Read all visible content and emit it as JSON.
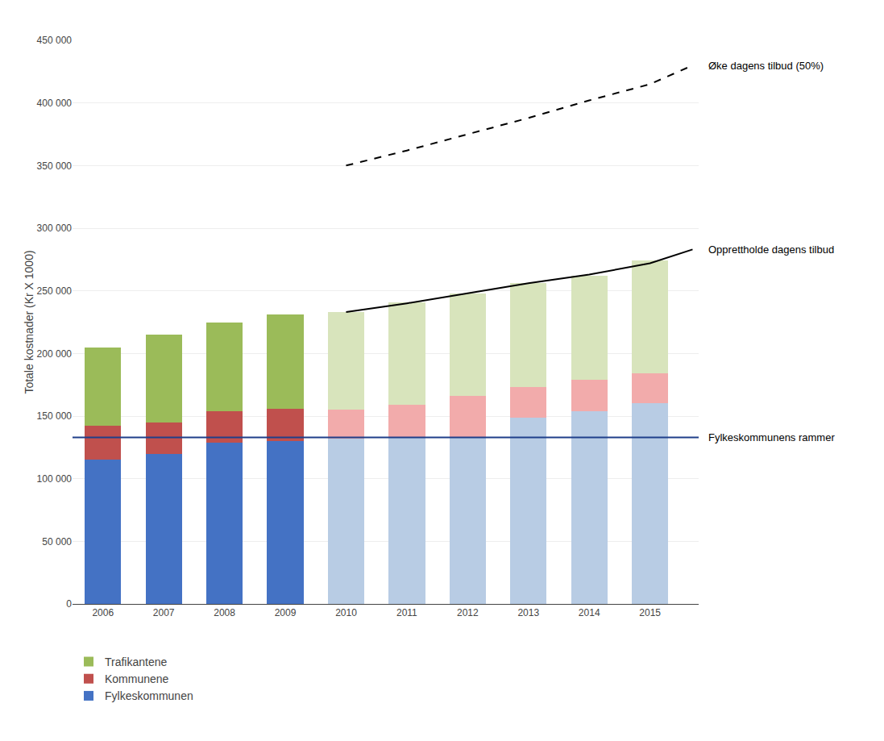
{
  "chart_data": {
    "type": "bar",
    "stacked": true,
    "grid": true,
    "legend": "bottom",
    "categories": [
      "2006",
      "2007",
      "2008",
      "2009",
      "2010",
      "2011",
      "2012",
      "2013",
      "2014",
      "2015"
    ],
    "xlim": [
      -0.5,
      9.8
    ],
    "ylabel": "Totale kostnader (Kr X 1000)",
    "ylim": [
      0,
      450000
    ],
    "yticks": [
      0,
      {
        "value": 50000,
        "label": "50 000"
      },
      {
        "value": 100000,
        "label": "100 000"
      },
      {
        "value": 150000,
        "label": "150 000"
      },
      {
        "value": 200000,
        "label": "200 000"
      },
      {
        "value": 250000,
        "label": "250 000"
      },
      {
        "value": 300000,
        "label": "300 000"
      },
      {
        "value": 350000,
        "label": "350 000"
      },
      {
        "value": 400000,
        "label": "400 000"
      },
      {
        "value": 450000,
        "label": "450 000"
      }
    ],
    "series": [
      {
        "name": "Fylkeskommunen",
        "colors": [
          "#4472C4",
          "#4472C4",
          "#4472C4",
          "#4472C4",
          "#B8CCE4",
          "#B8CCE4",
          "#B8CCE4",
          "#B8CCE4",
          "#B8CCE4",
          "#B8CCE4"
        ],
        "values": [
          115000,
          120000,
          129000,
          130000,
          132000,
          133000,
          133000,
          149000,
          154000,
          160000
        ]
      },
      {
        "name": "Kommunene",
        "colors": [
          "#C0504D",
          "#C0504D",
          "#C0504D",
          "#C0504D",
          "#F2ABAB",
          "#F2ABAB",
          "#F2ABAB",
          "#F2ABAB",
          "#F2ABAB",
          "#F2ABAB"
        ],
        "values": [
          27000,
          25000,
          25000,
          26000,
          23000,
          26000,
          33000,
          24000,
          25000,
          24000
        ]
      },
      {
        "name": "Trafikantene",
        "colors": [
          "#9BBB59",
          "#9BBB59",
          "#9BBB59",
          "#9BBB59",
          "#D8E4BC",
          "#D8E4BC",
          "#D8E4BC",
          "#D8E4BC",
          "#D8E4BC",
          "#D8E4BC"
        ],
        "values": [
          63000,
          70000,
          71000,
          75000,
          78000,
          82000,
          82000,
          83000,
          83000,
          90000
        ]
      },
      {
        "type": "line",
        "line_style": "solid",
        "color": "#000000",
        "x": [
          4,
          5,
          6,
          7,
          8,
          9,
          9.7
        ],
        "values": [
          233000,
          240000,
          248000,
          256000,
          263000,
          272000,
          283000
        ]
      },
      {
        "type": "line",
        "line_style": "dashed",
        "color": "#000000",
        "x": [
          4,
          5,
          6,
          7,
          8,
          9,
          9.7
        ],
        "values": [
          350000,
          362000,
          375000,
          388000,
          402000,
          415000,
          430000
        ]
      }
    ],
    "hlines": [
      {
        "y": 133000,
        "color": "#1F3F8A"
      }
    ],
    "annotations": [
      "Opprettholde dagens tilbud",
      "Øke dagens tilbud (50%)",
      "Fylkeskommunens rammer"
    ]
  }
}
